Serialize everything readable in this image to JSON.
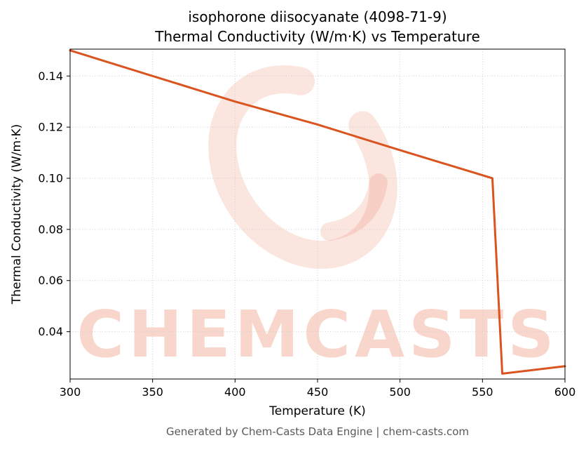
{
  "chart_data": {
    "type": "line",
    "title": "isophorone diisocyanate (4098-71-9)",
    "subtitle": "Thermal Conductivity (W/m·K) vs Temperature",
    "xlabel": "Temperature (K)",
    "ylabel": "Thermal Conductivity (W/m·K)",
    "xlim": [
      300,
      600
    ],
    "ylim": [
      0.0215,
      0.1505
    ],
    "grid": true,
    "legend": false,
    "x_ticks": [
      300,
      350,
      400,
      450,
      500,
      550,
      600
    ],
    "x_tick_labels": [
      "300",
      "350",
      "400",
      "450",
      "500",
      "550",
      "600"
    ],
    "y_ticks": [
      0.04,
      0.06,
      0.08,
      0.1,
      0.12,
      0.14
    ],
    "y_tick_labels": [
      "0.04",
      "0.06",
      "0.08",
      "0.10",
      "0.12",
      "0.14"
    ],
    "line_color": "#d9541e",
    "line_width": 3,
    "series": [
      {
        "name": "thermal-conductivity",
        "x": [
          300,
          350,
          400,
          450,
          500,
          556,
          562,
          600
        ],
        "y": [
          0.15,
          0.14,
          0.13,
          0.121,
          0.111,
          0.1,
          0.0236,
          0.0265
        ]
      }
    ],
    "watermark": {
      "text": "CHEMCASTS",
      "color": "#e8603a",
      "text_opacity": 0.25,
      "logo_opacity": 0.16
    }
  },
  "footer": {
    "text": "Generated by Chem-Casts Data Engine | chem-casts.com"
  }
}
